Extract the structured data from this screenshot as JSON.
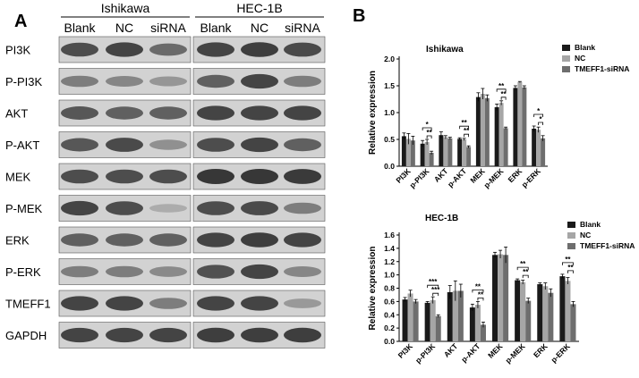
{
  "panel_a": {
    "label": "A",
    "groups": [
      "Ishikawa",
      "HEC-1B"
    ],
    "lanes": [
      "Blank",
      "NC",
      "siRNA"
    ],
    "rows": [
      {
        "name": "PI3K",
        "levels": [
          [
            0.8,
            0.85,
            0.65
          ],
          [
            0.85,
            0.88,
            0.82
          ]
        ]
      },
      {
        "name": "P-PI3K",
        "levels": [
          [
            0.55,
            0.5,
            0.42
          ],
          [
            0.7,
            0.85,
            0.55
          ]
        ]
      },
      {
        "name": "AKT",
        "levels": [
          [
            0.75,
            0.7,
            0.7
          ],
          [
            0.85,
            0.85,
            0.85
          ]
        ]
      },
      {
        "name": "P-AKT",
        "levels": [
          [
            0.75,
            0.82,
            0.45
          ],
          [
            0.8,
            0.85,
            0.7
          ]
        ]
      },
      {
        "name": "MEK",
        "levels": [
          [
            0.8,
            0.8,
            0.8
          ],
          [
            0.92,
            0.92,
            0.9
          ]
        ]
      },
      {
        "name": "P-MEK",
        "levels": [
          [
            0.85,
            0.8,
            0.3
          ],
          [
            0.8,
            0.82,
            0.55
          ]
        ]
      },
      {
        "name": "ERK",
        "levels": [
          [
            0.7,
            0.7,
            0.7
          ],
          [
            0.85,
            0.88,
            0.85
          ]
        ]
      },
      {
        "name": "P-ERK",
        "levels": [
          [
            0.55,
            0.55,
            0.48
          ],
          [
            0.78,
            0.85,
            0.5
          ]
        ]
      },
      {
        "name": "TMEFF1",
        "levels": [
          [
            0.85,
            0.85,
            0.55
          ],
          [
            0.85,
            0.85,
            0.4
          ]
        ]
      },
      {
        "name": "GAPDH",
        "levels": [
          [
            0.85,
            0.85,
            0.85
          ],
          [
            0.88,
            0.88,
            0.88
          ]
        ]
      }
    ]
  },
  "panel_b": {
    "label": "B"
  },
  "chart_data": [
    {
      "type": "bar",
      "title": "Ishikawa",
      "ylabel": "Relative expression",
      "xlabel": "",
      "ylim": [
        0,
        2.0
      ],
      "yticks": [
        "0.0",
        "0.5",
        "1.0",
        "1.5",
        "2.0"
      ],
      "categories": [
        "PI3K",
        "p-PI3K",
        "AKT",
        "p-AKT",
        "MEK",
        "p-MEK",
        "ERK",
        "p-ERK"
      ],
      "series": [
        {
          "name": "Blank",
          "color": "#1a1a1a",
          "values": [
            0.56,
            0.42,
            0.58,
            0.51,
            1.29,
            1.1,
            1.46,
            0.7
          ],
          "errors": [
            0.06,
            0.06,
            0.06,
            0.02,
            0.08,
            0.06,
            0.04,
            0.05
          ]
        },
        {
          "name": "NC",
          "color": "#a6a6a6",
          "values": [
            0.51,
            0.45,
            0.54,
            0.5,
            1.35,
            1.18,
            1.57,
            0.68
          ],
          "errors": [
            0.1,
            0.05,
            0.03,
            0.02,
            0.1,
            0.04,
            0.01,
            0.05
          ]
        },
        {
          "name": "TMEFF1-siRNA",
          "color": "#6e6e6e",
          "values": [
            0.48,
            0.25,
            0.52,
            0.36,
            1.27,
            0.71,
            1.47,
            0.52
          ],
          "errors": [
            0.08,
            0.03,
            0.02,
            0.02,
            0.06,
            0.02,
            0.03,
            0.05
          ]
        }
      ],
      "significance": [
        {
          "category": 1,
          "pairs": [
            [
              "*",
              0,
              2
            ],
            [
              "**",
              1,
              2
            ]
          ]
        },
        {
          "category": 3,
          "pairs": [
            [
              "**",
              0,
              2
            ],
            [
              "**",
              1,
              2
            ]
          ]
        },
        {
          "category": 5,
          "pairs": [
            [
              "**",
              0,
              2
            ],
            [
              "**",
              1,
              2
            ]
          ]
        },
        {
          "category": 7,
          "pairs": [
            [
              "*",
              0,
              2
            ],
            [
              "*",
              1,
              2
            ]
          ]
        }
      ],
      "legend": "top-right"
    },
    {
      "type": "bar",
      "title": "HEC-1B",
      "ylabel": "Relative expression",
      "xlabel": "",
      "ylim": [
        0,
        1.6
      ],
      "yticks": [
        "0.0",
        "0.2",
        "0.4",
        "0.6",
        "0.8",
        "1.0",
        "1.2",
        "1.4",
        "1.6"
      ],
      "categories": [
        "PI3K",
        "p-PI3K",
        "AKT",
        "p-AKT",
        "MEK",
        "p-MEK",
        "ERK",
        "p-ERK"
      ],
      "series": [
        {
          "name": "Blank",
          "color": "#1a1a1a",
          "values": [
            0.63,
            0.58,
            0.74,
            0.51,
            1.3,
            0.92,
            0.86,
            0.98
          ],
          "errors": [
            0.03,
            0.02,
            0.1,
            0.05,
            0.04,
            0.02,
            0.02,
            0.03
          ]
        },
        {
          "name": "NC",
          "color": "#a6a6a6",
          "values": [
            0.72,
            0.62,
            0.76,
            0.55,
            1.31,
            0.89,
            0.83,
            0.91
          ],
          "errors": [
            0.05,
            0.05,
            0.15,
            0.05,
            0.06,
            0.03,
            0.05,
            0.05
          ]
        },
        {
          "name": "TMEFF1-siRNA",
          "color": "#6e6e6e",
          "values": [
            0.6,
            0.38,
            0.76,
            0.25,
            1.3,
            0.61,
            0.73,
            0.56
          ],
          "errors": [
            0.03,
            0.02,
            0.1,
            0.04,
            0.12,
            0.04,
            0.06,
            0.04
          ]
        }
      ],
      "significance": [
        {
          "category": 1,
          "pairs": [
            [
              "***",
              0,
              2
            ],
            [
              "***",
              1,
              2
            ]
          ]
        },
        {
          "category": 3,
          "pairs": [
            [
              "**",
              0,
              2
            ],
            [
              "**",
              1,
              2
            ]
          ]
        },
        {
          "category": 5,
          "pairs": [
            [
              "**",
              0,
              2
            ],
            [
              "**",
              1,
              2
            ]
          ]
        },
        {
          "category": 7,
          "pairs": [
            [
              "**",
              0,
              2
            ],
            [
              "**",
              1,
              2
            ]
          ]
        }
      ],
      "legend": "top-right"
    }
  ]
}
